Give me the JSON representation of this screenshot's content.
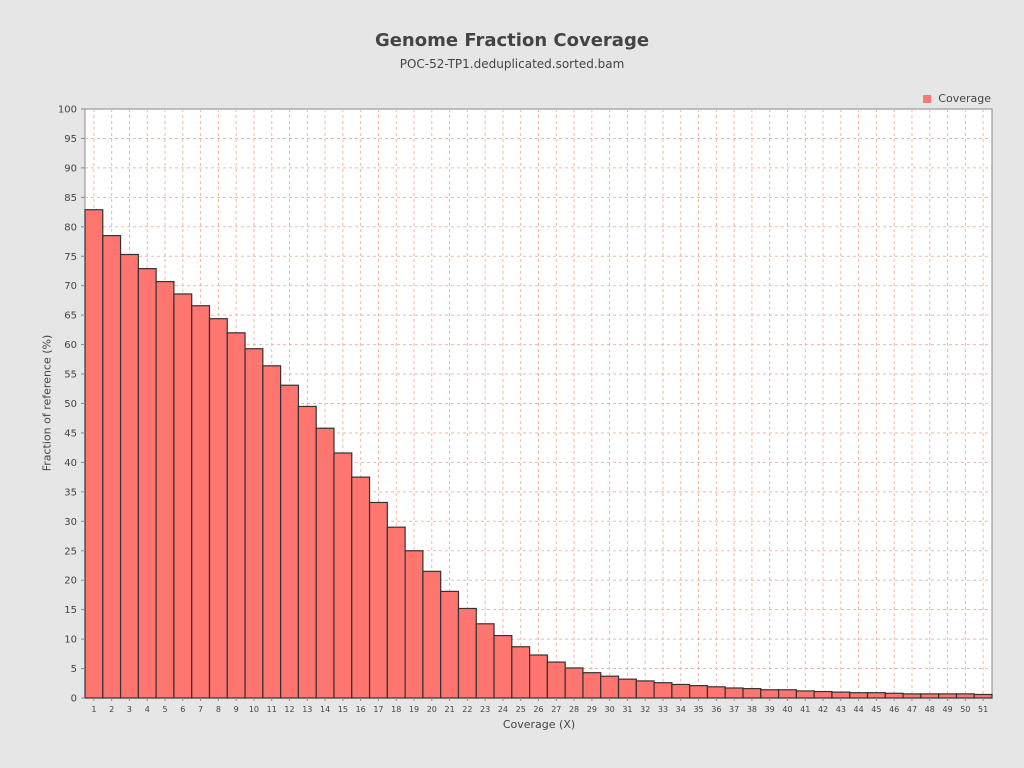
{
  "chart_data": {
    "type": "bar",
    "title": "Genome Fraction Coverage",
    "subtitle": "POC-52-TP1.deduplicated.sorted.bam",
    "xlabel": "Coverage (X)",
    "ylabel": "Fraction of reference (%)",
    "ylim": [
      0,
      100
    ],
    "yticks": [
      0,
      5,
      10,
      15,
      20,
      25,
      30,
      35,
      40,
      45,
      50,
      55,
      60,
      65,
      70,
      75,
      80,
      85,
      90,
      95,
      100
    ],
    "grid": true,
    "legend_position": "top-right",
    "categories": [
      "1",
      "2",
      "3",
      "4",
      "5",
      "6",
      "7",
      "8",
      "9",
      "10",
      "11",
      "12",
      "13",
      "14",
      "15",
      "16",
      "17",
      "18",
      "19",
      "20",
      "21",
      "22",
      "23",
      "24",
      "25",
      "26",
      "27",
      "28",
      "29",
      "30",
      "31",
      "32",
      "33",
      "34",
      "35",
      "36",
      "37",
      "38",
      "39",
      "40",
      "41",
      "42",
      "43",
      "44",
      "45",
      "46",
      "47",
      "48",
      "49",
      "50",
      "51"
    ],
    "series": [
      {
        "name": "Coverage",
        "color": "#ff7570",
        "values": [
          82.9,
          78.5,
          75.3,
          72.9,
          70.7,
          68.6,
          66.6,
          64.4,
          62.0,
          59.3,
          56.4,
          53.1,
          49.5,
          45.8,
          41.6,
          37.5,
          33.2,
          29.0,
          25.0,
          21.5,
          18.1,
          15.2,
          12.6,
          10.6,
          8.7,
          7.3,
          6.1,
          5.1,
          4.3,
          3.7,
          3.2,
          2.9,
          2.6,
          2.3,
          2.1,
          1.9,
          1.7,
          1.6,
          1.4,
          1.4,
          1.2,
          1.1,
          1.0,
          0.9,
          0.9,
          0.8,
          0.7,
          0.7,
          0.7,
          0.7,
          0.6
        ]
      }
    ]
  }
}
